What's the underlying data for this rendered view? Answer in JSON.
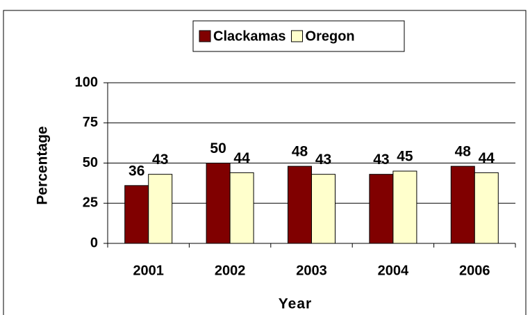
{
  "chart_data": {
    "type": "bar",
    "categories": [
      "2001",
      "2002",
      "2003",
      "2004",
      "2006"
    ],
    "series": [
      {
        "name": "Clackamas",
        "color": "#800000",
        "values": [
          36,
          50,
          48,
          43,
          48
        ]
      },
      {
        "name": "Oregon",
        "color": "#ffffcc",
        "values": [
          43,
          44,
          43,
          45,
          44
        ]
      }
    ],
    "ylim": [
      0,
      100
    ],
    "yticks": [
      0,
      25,
      50,
      75,
      100
    ],
    "grid": true,
    "y_label": "Percentage",
    "x_label": "Year",
    "legend": "top"
  }
}
